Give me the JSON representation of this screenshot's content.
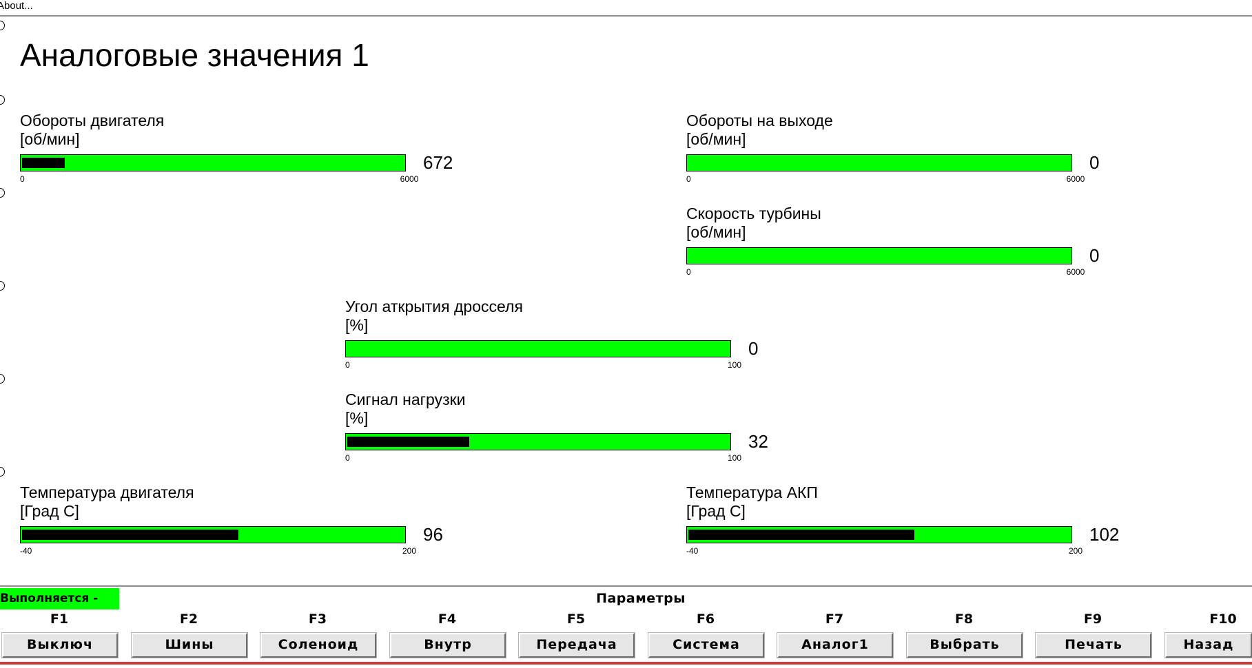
{
  "menu": {
    "about": "About..."
  },
  "page_title": "Аналоговые значения 1",
  "gauges": [
    {
      "label": "Обороты двигателя",
      "unit": "[об/мин]",
      "value": "672",
      "min": "0",
      "max": "6000",
      "fill_fraction": 0.112
    },
    {
      "label": "Обороты на выходе",
      "unit": "[об/мин]",
      "value": "0",
      "min": "0",
      "max": "6000",
      "fill_fraction": 0
    },
    {
      "label": "Скорость турбины",
      "unit": "[об/мин]",
      "value": "0",
      "min": "0",
      "max": "6000",
      "fill_fraction": 0
    },
    {
      "label": "Угол аткрытия дросселя",
      "unit": "[%]",
      "value": "0",
      "min": "0",
      "max": "100",
      "fill_fraction": 0
    },
    {
      "label": "Сигнал нагрузки",
      "unit": "[%]",
      "value": "32",
      "min": "0",
      "max": "100",
      "fill_fraction": 0.32
    },
    {
      "label": "Температура двигателя",
      "unit": "[Град С]",
      "value": "96",
      "min": "-40",
      "max": "200",
      "fill_fraction": 0.567
    },
    {
      "label": "Температура АКП",
      "unit": "[Град С]",
      "value": "102",
      "min": "-40",
      "max": "200",
      "fill_fraction": 0.592
    }
  ],
  "status": {
    "text": "Выполняется -",
    "color": "#00ff00"
  },
  "footer": {
    "title": "Параметры",
    "keys": [
      {
        "key": "F1",
        "label": "Выключ"
      },
      {
        "key": "F2",
        "label": "Шины"
      },
      {
        "key": "F3",
        "label": "Соленоид"
      },
      {
        "key": "F4",
        "label": "Внутр"
      },
      {
        "key": "F5",
        "label": "Передача"
      },
      {
        "key": "F6",
        "label": "Система"
      },
      {
        "key": "F7",
        "label": "Аналог1"
      },
      {
        "key": "F8",
        "label": "Выбрать"
      },
      {
        "key": "F9",
        "label": "Печать"
      },
      {
        "key": "F10",
        "label": "Назад"
      }
    ]
  },
  "colors": {
    "bar": "#00ff00",
    "fill": "#000000"
  }
}
